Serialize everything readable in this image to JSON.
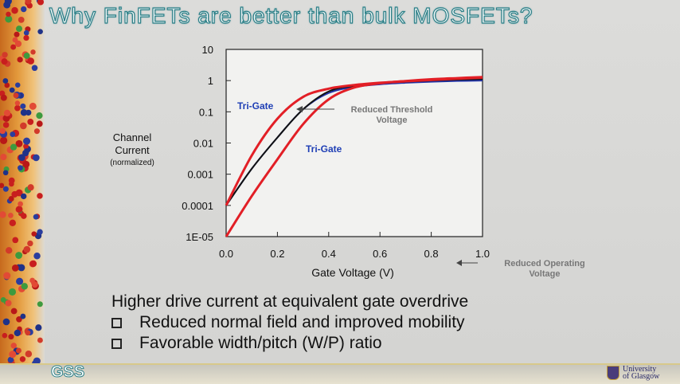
{
  "slide": {
    "title": "Why FinFETs are better than bulk MOSFETs?",
    "footer_left": "GSS",
    "footer_right_line1": "University",
    "footer_right_line2": "of Glasgow"
  },
  "bullets": {
    "main": "Higher drive current at equivalent gate overdrive",
    "items": [
      "Reduced normal field and improved mobility",
      "Favorable width/pitch (W/P) ratio"
    ]
  },
  "chart_data": {
    "type": "line",
    "xlabel": "Gate Voltage (V)",
    "ylabel_line1": "Channel",
    "ylabel_line2": "Current",
    "ylabel_line3": "(normalized)",
    "xlim": [
      0.0,
      1.0
    ],
    "ylim_log10": [
      -5,
      1
    ],
    "y_scale": "log",
    "x_ticks": [
      "0.0",
      "0.2",
      "0.4",
      "0.6",
      "0.8",
      "1.0"
    ],
    "y_ticks": [
      "10",
      "1",
      "0.1",
      "0.01",
      "0.001",
      "0.0001",
      "1E-05"
    ],
    "colors": {
      "tri_gate": "#e21f26",
      "bulk": "#111111",
      "blue_curve": "#2233aa",
      "label_blue": "#1f3fb5"
    },
    "series": [
      {
        "key": "tri_gate_upper",
        "color": "#e21f26",
        "x": [
          0.0,
          0.1,
          0.2,
          0.3,
          0.4,
          0.5,
          0.6,
          0.7,
          0.8,
          0.9,
          1.0
        ],
        "y": [
          0.0001,
          0.004,
          0.06,
          0.3,
          0.55,
          0.72,
          0.85,
          0.95,
          1.05,
          1.15,
          1.25
        ]
      },
      {
        "key": "bulk",
        "color": "#111111",
        "x": [
          0.0,
          0.1,
          0.2,
          0.3,
          0.4,
          0.5,
          0.6,
          0.7,
          0.8,
          0.9,
          1.0
        ],
        "y": [
          0.0001,
          0.0015,
          0.015,
          0.12,
          0.45,
          0.68,
          0.82,
          0.92,
          1.0,
          1.07,
          1.12
        ]
      },
      {
        "key": "tri_gate_lower",
        "color": "#e21f26",
        "x": [
          0.0,
          0.1,
          0.2,
          0.3,
          0.4,
          0.5,
          0.6,
          0.7,
          0.8,
          0.9,
          1.0
        ],
        "y": [
          1e-05,
          0.0002,
          0.003,
          0.04,
          0.25,
          0.6,
          0.82,
          0.97,
          1.1,
          1.2,
          1.3
        ]
      },
      {
        "key": "blue_curve",
        "color": "#2233aa",
        "x": [
          0.0,
          0.1,
          0.2,
          0.3,
          0.4,
          0.5,
          0.6,
          0.7,
          0.8,
          0.9,
          1.0
        ],
        "y": [
          0.0001,
          0.0015,
          0.015,
          0.12,
          0.4,
          0.62,
          0.76,
          0.85,
          0.92,
          0.97,
          1.0
        ]
      }
    ],
    "annotations": {
      "tri_gate_top": "Tri-Gate",
      "tri_gate_bottom": "Tri-Gate",
      "reduced_threshold_line1": "Reduced Threshold",
      "reduced_threshold_line2": "Voltage",
      "reduced_operating_line1": "Reduced Operating",
      "reduced_operating_line2": "Voltage"
    }
  }
}
